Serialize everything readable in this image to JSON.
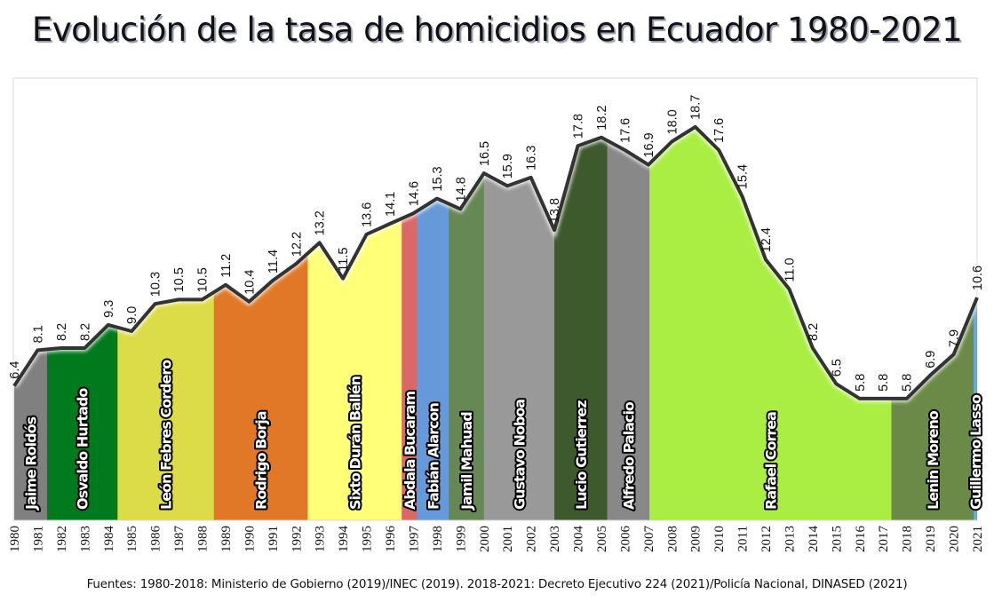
{
  "title": "Evolución de la tasa de homicidios en Ecuador 1980-2021",
  "source": "Fuentes: 1980-2018: Ministerio de Gobierno (2019)/INEC (2019). 2018-2021: Decreto Ejecutivo 224 (2021)/Policía Nacional, DINASED (2021)",
  "chart_data": {
    "type": "area",
    "title": "Evolución de la tasa de homicidios en Ecuador 1980-2021",
    "xlabel": "",
    "ylabel": "",
    "grid": false,
    "legend_position": "none",
    "x": [
      1980,
      1981,
      1982,
      1983,
      1984,
      1985,
      1986,
      1987,
      1988,
      1989,
      1990,
      1991,
      1992,
      1993,
      1994,
      1995,
      1996,
      1997,
      1998,
      1999,
      2000,
      2001,
      2002,
      2003,
      2004,
      2005,
      2006,
      2007,
      2008,
      2009,
      2010,
      2011,
      2012,
      2013,
      2014,
      2015,
      2016,
      2017,
      2018,
      2019,
      2020,
      2021
    ],
    "values": [
      6.4,
      8.1,
      8.2,
      8.2,
      9.3,
      9.0,
      10.3,
      10.5,
      10.5,
      11.2,
      10.4,
      11.4,
      12.2,
      13.2,
      11.5,
      13.6,
      14.1,
      14.6,
      15.3,
      14.8,
      16.5,
      15.9,
      16.3,
      13.8,
      17.8,
      18.2,
      17.6,
      16.9,
      18.0,
      18.7,
      17.6,
      15.4,
      12.4,
      11.0,
      8.2,
      6.5,
      5.8,
      5.8,
      5.8,
      6.9,
      7.9,
      10.6
    ],
    "value_labels": [
      "6.4",
      "8.1",
      "8.2",
      "8.2",
      "9.3",
      "9.0",
      "10.3",
      "10.5",
      "10.5",
      "11.2",
      "10.4",
      "11.4",
      "12.2",
      "13.2",
      "11.5",
      "13.6",
      "14.1",
      "14.6",
      "15.3",
      "14.8",
      "16.5",
      "15.9",
      "16.3",
      "13.8",
      "17.8",
      "18.2",
      "17.6",
      "16.9",
      "18.0",
      "18.7",
      "17.6",
      "15.4",
      "12.4",
      "11.0",
      "8.2",
      "6.5",
      "5.8",
      "5.8",
      "5.8",
      "6.9",
      "7.9",
      "10.6"
    ],
    "ylim": [
      0,
      20
    ],
    "presidents": [
      {
        "name": "Jaime Roldós",
        "start": 1980.0,
        "end": 1981.4,
        "color": "#808080"
      },
      {
        "name": "Osvaldo Hurtado",
        "start": 1981.4,
        "end": 1984.4,
        "color": "#007a1c"
      },
      {
        "name": "León Febres Cordero",
        "start": 1984.4,
        "end": 1988.5,
        "color": "#dcdc48"
      },
      {
        "name": "Rodrigo Borja",
        "start": 1988.5,
        "end": 1992.5,
        "color": "#e07828"
      },
      {
        "name": "Sixto Durán Ballén",
        "start": 1992.5,
        "end": 1996.5,
        "color": "#ffff78"
      },
      {
        "name": "Abdala Bucaram",
        "start": 1996.5,
        "end": 1997.15,
        "color": "#d96868"
      },
      {
        "name": "Fabián Alarcon",
        "start": 1997.15,
        "end": 1998.5,
        "color": "#6699d9"
      },
      {
        "name": "Jamil Mahuad",
        "start": 1998.5,
        "end": 2000.0,
        "color": "#668855"
      },
      {
        "name": "Gustavo Noboa",
        "start": 2000.0,
        "end": 2003.0,
        "color": "#999999"
      },
      {
        "name": "Lucio Gutierrez",
        "start": 2003.0,
        "end": 2005.25,
        "color": "#3d5a2d"
      },
      {
        "name": "Alfredo Palacio",
        "start": 2005.25,
        "end": 2007.05,
        "color": "#888888"
      },
      {
        "name": "Rafael Correa",
        "start": 2007.05,
        "end": 2017.35,
        "color": "#aaee44"
      },
      {
        "name": "Lenin Moreno",
        "start": 2017.35,
        "end": 2020.85,
        "color": "#6b8a48"
      },
      {
        "name": "Guillermo Lasso",
        "start": 2020.85,
        "end": 2021.0,
        "color": "#66aadd"
      }
    ],
    "line_color": "#333333"
  }
}
